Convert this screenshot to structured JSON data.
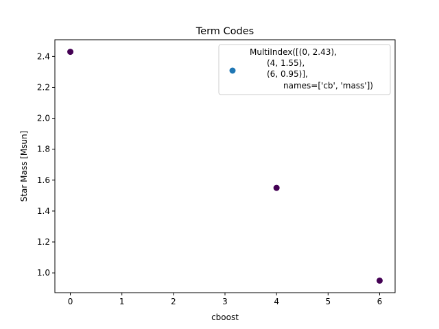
{
  "chart_data": {
    "type": "scatter",
    "title": "Term Codes",
    "xlabel": "cboost",
    "ylabel": "Star Mass [Msun]",
    "xlim": [
      -0.3,
      6.3
    ],
    "ylim": [
      0.872,
      2.508
    ],
    "xticks": [
      "0",
      "1",
      "2",
      "3",
      "4",
      "5",
      "6"
    ],
    "yticks": [
      "1.0",
      "1.2",
      "1.4",
      "1.6",
      "1.8",
      "2.0",
      "2.2",
      "2.4"
    ],
    "grid": false,
    "point_color": "#440154",
    "series": [
      {
        "x": [
          0,
          4,
          6
        ],
        "y": [
          2.43,
          1.55,
          0.95
        ]
      }
    ],
    "legend": {
      "placement": "top-right",
      "marker_color": "#1f77b4",
      "lines": [
        "MultiIndex([(0, 2.43),",
        "(4, 1.55),",
        "(6, 0.95)],",
        "names=['cb', 'mass'])"
      ]
    }
  }
}
